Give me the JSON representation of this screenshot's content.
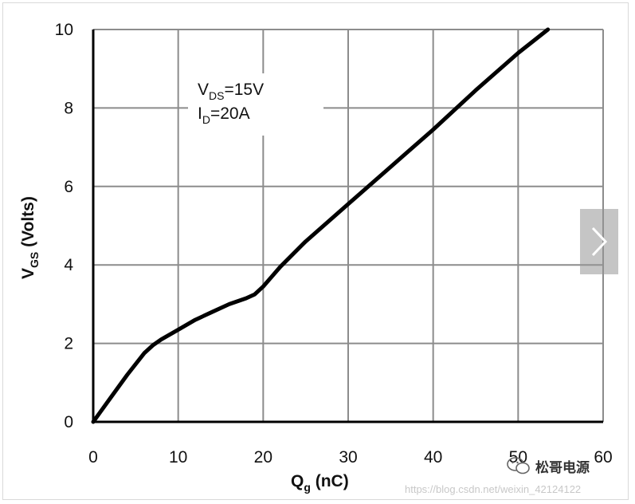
{
  "chart_data": {
    "type": "line",
    "xlabel_main": "Q",
    "xlabel_sub": "g",
    "xlabel_unit": " (nC)",
    "ylabel_main": "V",
    "ylabel_sub": "GS",
    "ylabel_unit": " (Volts)",
    "xlim": [
      0,
      60
    ],
    "ylim": [
      0,
      10
    ],
    "x_ticks": [
      "0",
      "10",
      "20",
      "30",
      "40",
      "50",
      "60"
    ],
    "y_ticks": [
      "0",
      "2",
      "4",
      "6",
      "8",
      "10"
    ],
    "grid": true,
    "annotation": {
      "line1_main": "V",
      "line1_sub": "DS",
      "line1_rest": "=15V",
      "line2_main": "I",
      "line2_sub": "D",
      "line2_rest": "=20A"
    },
    "series": [
      {
        "x": [
          0,
          2,
          4,
          6,
          7,
          8,
          10,
          12,
          14,
          16,
          18,
          19,
          20,
          21,
          22,
          25,
          30,
          35,
          40,
          45,
          50,
          53.5
        ],
        "y": [
          0,
          0.6,
          1.2,
          1.75,
          1.95,
          2.1,
          2.35,
          2.6,
          2.8,
          3.0,
          3.15,
          3.25,
          3.45,
          3.7,
          3.95,
          4.6,
          5.55,
          6.5,
          7.45,
          8.45,
          9.4,
          10.0
        ],
        "color": "#000000"
      }
    ]
  },
  "watermark": {
    "icon": "wechat-icon",
    "brand_text": "松哥电源",
    "url_text": "https://blog.csdn.net/weixin_42124122"
  },
  "next_button": {
    "icon": "chevron-right-icon"
  }
}
